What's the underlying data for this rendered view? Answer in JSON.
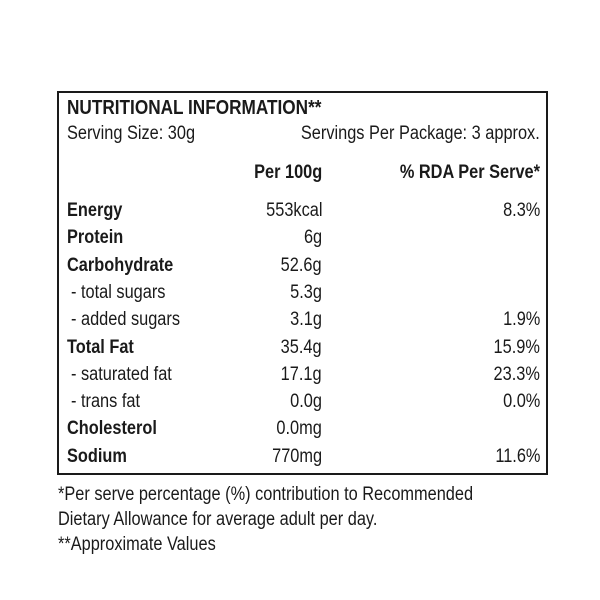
{
  "panel": {
    "title": "NUTRITIONAL INFORMATION**",
    "serving_size": "Serving Size: 30g",
    "servings_per_package": "Servings Per Package: 3 approx.",
    "headers": {
      "per100": "Per 100g",
      "rda": "% RDA Per Serve*"
    },
    "rows": [
      {
        "name": "Energy",
        "per100": "553kcal",
        "rda": "8.3%",
        "bold": true
      },
      {
        "name": "Protein",
        "per100": "6g",
        "rda": "",
        "bold": true
      },
      {
        "name": "Carbohydrate",
        "per100": "52.6g",
        "rda": "",
        "bold": true
      },
      {
        "name": "- total sugars",
        "per100": "5.3g",
        "rda": "",
        "bold": false
      },
      {
        "name": "- added sugars",
        "per100": "3.1g",
        "rda": "1.9%",
        "bold": false
      },
      {
        "name": "Total Fat",
        "per100": "35.4g",
        "rda": "15.9%",
        "bold": true
      },
      {
        "name": "- saturated fat",
        "per100": "17.1g",
        "rda": "23.3%",
        "bold": false
      },
      {
        "name": "- trans fat",
        "per100": "0.0g",
        "rda": "0.0%",
        "bold": false
      },
      {
        "name": "Cholesterol",
        "per100": "0.0mg",
        "rda": "",
        "bold": true
      },
      {
        "name": "Sodium",
        "per100": "770mg",
        "rda": "11.6%",
        "bold": true
      }
    ]
  },
  "footnotes": {
    "line1": "*Per serve percentage (%) contribution to Recommended",
    "line2": "Dietary Allowance for average adult per day.",
    "line3": "**Approximate Values"
  }
}
